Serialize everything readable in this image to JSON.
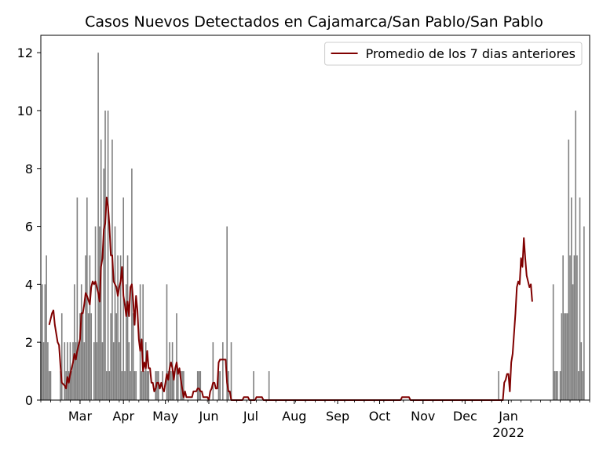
{
  "chart_data": {
    "type": "bar",
    "title": "Casos Nuevos Detectados en Cajamarca/San Pablo/San Pablo",
    "xlabel": "",
    "ylabel": "",
    "ylim": [
      0,
      12.6
    ],
    "xlim": [
      "2021-02-01",
      "2022-02-28"
    ],
    "y_ticks": [
      0,
      2,
      4,
      6,
      8,
      10,
      12
    ],
    "x_ticks": [
      {
        "date": "2021-03-01",
        "label": "Mar"
      },
      {
        "date": "2021-04-01",
        "label": "Apr"
      },
      {
        "date": "2021-05-01",
        "label": "May"
      },
      {
        "date": "2021-06-01",
        "label": "Jun"
      },
      {
        "date": "2021-07-01",
        "label": "Jul"
      },
      {
        "date": "2021-08-01",
        "label": "Aug"
      },
      {
        "date": "2021-09-01",
        "label": "Sep"
      },
      {
        "date": "2021-10-01",
        "label": "Oct"
      },
      {
        "date": "2021-11-01",
        "label": "Nov"
      },
      {
        "date": "2021-12-01",
        "label": "Dec"
      },
      {
        "date": "2022-01-01",
        "label": "Jan",
        "sublabel": "2022"
      }
    ],
    "legend": {
      "position": "top-right",
      "label": "Promedio de los 7 dias anteriores"
    },
    "colors": {
      "bars": "#808080",
      "line": "#800000",
      "frame": "#000000"
    },
    "series": [
      {
        "kind": "bar",
        "start_date": "2021-02-01",
        "values": [
          2,
          4,
          2,
          4,
          5,
          2,
          1,
          1,
          0,
          0,
          0,
          0,
          0,
          0,
          1,
          3,
          0,
          2,
          1,
          2,
          1,
          2,
          1,
          2,
          4,
          2,
          7,
          2,
          3,
          4,
          3,
          2,
          5,
          7,
          3,
          5,
          3,
          0,
          2,
          6,
          2,
          12,
          6,
          9,
          2,
          8,
          10,
          1,
          10,
          1,
          3,
          9,
          2,
          6,
          3,
          5,
          2,
          5,
          1,
          7,
          1,
          4,
          5,
          2,
          1,
          8,
          3,
          1,
          1,
          0,
          0,
          4,
          1,
          4,
          1,
          2,
          1,
          1,
          0,
          0,
          0,
          0,
          1,
          1,
          1,
          0,
          0,
          1,
          0,
          0,
          4,
          1,
          2,
          1,
          2,
          1,
          0,
          3,
          1,
          0,
          1,
          1,
          1,
          0,
          0,
          0,
          0,
          0,
          0,
          0,
          0,
          0,
          1,
          1,
          1,
          0,
          0,
          0,
          0,
          0,
          0,
          0,
          0,
          2,
          0,
          0,
          0,
          1,
          1,
          0,
          2,
          0,
          0,
          6,
          1,
          0,
          2,
          0,
          0,
          0,
          0,
          0,
          0,
          0,
          0,
          0,
          0,
          0,
          0,
          0,
          0,
          0,
          1,
          0,
          0,
          0,
          0,
          0,
          0,
          0,
          0,
          0,
          0,
          1,
          0,
          0,
          0,
          0,
          0,
          0,
          0,
          0,
          0,
          0,
          0,
          0,
          0,
          0,
          0,
          0,
          0,
          0,
          0,
          0,
          0,
          0,
          0,
          0,
          0,
          0,
          0,
          0,
          0,
          0,
          0,
          0,
          0,
          0,
          0,
          0,
          0,
          0,
          0,
          0,
          0,
          0,
          0,
          0,
          0,
          0,
          0,
          0,
          0,
          0,
          0,
          0,
          0,
          0,
          0,
          0,
          0,
          0,
          0,
          0,
          0,
          0,
          0,
          0,
          0,
          0,
          0,
          0,
          0,
          0,
          0,
          0,
          0,
          0,
          0,
          0,
          0,
          0,
          0,
          0,
          0,
          0,
          0,
          0,
          0,
          0,
          0,
          0,
          0,
          0,
          0,
          0,
          0,
          0,
          0,
          0,
          0,
          0,
          0,
          0,
          0,
          0,
          0,
          0,
          0,
          0,
          0,
          0,
          0,
          0,
          0,
          0,
          0,
          0,
          0,
          0,
          0,
          0,
          0,
          0,
          0,
          0,
          0,
          0,
          0,
          0,
          0,
          0,
          0,
          0,
          0,
          0,
          0,
          0,
          0,
          0,
          0,
          0,
          0,
          0,
          0,
          0,
          0,
          0,
          0,
          0,
          0,
          0,
          0,
          0,
          0,
          0,
          0,
          0,
          0,
          0,
          0,
          0,
          0,
          0,
          0,
          0,
          0,
          1,
          0,
          0,
          0,
          0,
          0,
          0,
          0,
          0,
          0,
          0,
          0,
          0,
          0,
          0,
          0,
          0,
          0,
          0,
          0,
          0,
          0,
          0,
          0,
          0,
          0,
          0,
          0,
          0,
          0,
          0,
          0,
          0,
          0,
          0,
          0,
          0,
          0,
          0,
          4,
          1,
          1,
          1,
          0,
          1,
          3,
          5,
          3,
          3,
          3,
          9,
          5,
          7,
          4,
          5,
          10,
          5,
          1,
          7,
          2,
          1,
          6
        ]
      },
      {
        "kind": "line",
        "name": "Promedio de los 7 dias anteriores",
        "points": [
          [
            "2021-02-07",
            2.6
          ],
          [
            "2021-02-09",
            3.0
          ],
          [
            "2021-02-10",
            3.1
          ],
          [
            "2021-02-11",
            2.6
          ],
          [
            "2021-02-13",
            2.0
          ],
          [
            "2021-02-14",
            1.9
          ],
          [
            "2021-02-15",
            1.2
          ],
          [
            "2021-02-16",
            0.6
          ],
          [
            "2021-02-18",
            0.5
          ],
          [
            "2021-02-19",
            0.4
          ],
          [
            "2021-02-20",
            0.8
          ],
          [
            "2021-02-21",
            0.6
          ],
          [
            "2021-02-22",
            0.9
          ],
          [
            "2021-02-24",
            1.3
          ],
          [
            "2021-02-25",
            1.6
          ],
          [
            "2021-02-26",
            1.4
          ],
          [
            "2021-02-27",
            1.7
          ],
          [
            "2021-03-01",
            2.1
          ],
          [
            "2021-03-02",
            3.0
          ],
          [
            "2021-03-03",
            3.0
          ],
          [
            "2021-03-04",
            3.3
          ],
          [
            "2021-03-05",
            3.7
          ],
          [
            "2021-03-06",
            3.6
          ],
          [
            "2021-03-08",
            3.3
          ],
          [
            "2021-03-09",
            3.9
          ],
          [
            "2021-03-10",
            4.1
          ],
          [
            "2021-03-11",
            4.0
          ],
          [
            "2021-03-12",
            4.1
          ],
          [
            "2021-03-13",
            3.9
          ],
          [
            "2021-03-14",
            3.7
          ],
          [
            "2021-03-15",
            3.4
          ],
          [
            "2021-03-16",
            4.6
          ],
          [
            "2021-03-17",
            4.9
          ],
          [
            "2021-03-18",
            5.9
          ],
          [
            "2021-03-19",
            6.1
          ],
          [
            "2021-03-20",
            7.0
          ],
          [
            "2021-03-21",
            6.7
          ],
          [
            "2021-03-22",
            6.0
          ],
          [
            "2021-03-23",
            5.0
          ],
          [
            "2021-03-24",
            5.0
          ],
          [
            "2021-03-25",
            4.1
          ],
          [
            "2021-03-26",
            4.0
          ],
          [
            "2021-03-27",
            3.9
          ],
          [
            "2021-03-28",
            3.6
          ],
          [
            "2021-03-29",
            3.9
          ],
          [
            "2021-03-30",
            4.1
          ],
          [
            "2021-03-31",
            4.6
          ],
          [
            "2021-04-01",
            3.6
          ],
          [
            "2021-04-02",
            3.3
          ],
          [
            "2021-04-03",
            2.9
          ],
          [
            "2021-04-04",
            3.4
          ],
          [
            "2021-04-05",
            2.9
          ],
          [
            "2021-04-06",
            3.9
          ],
          [
            "2021-04-07",
            4.0
          ],
          [
            "2021-04-08",
            3.4
          ],
          [
            "2021-04-09",
            2.6
          ],
          [
            "2021-04-10",
            3.6
          ],
          [
            "2021-04-11",
            3.1
          ],
          [
            "2021-04-12",
            2.1
          ],
          [
            "2021-04-13",
            1.7
          ],
          [
            "2021-04-14",
            2.1
          ],
          [
            "2021-04-15",
            1.0
          ],
          [
            "2021-04-16",
            1.3
          ],
          [
            "2021-04-17",
            1.1
          ],
          [
            "2021-04-18",
            1.7
          ],
          [
            "2021-04-19",
            1.1
          ],
          [
            "2021-04-20",
            1.1
          ],
          [
            "2021-04-21",
            0.6
          ],
          [
            "2021-04-22",
            0.6
          ],
          [
            "2021-04-23",
            0.3
          ],
          [
            "2021-04-24",
            0.4
          ],
          [
            "2021-04-25",
            0.6
          ],
          [
            "2021-04-26",
            0.6
          ],
          [
            "2021-04-27",
            0.4
          ],
          [
            "2021-04-28",
            0.6
          ],
          [
            "2021-04-29",
            0.4
          ],
          [
            "2021-04-30",
            0.3
          ],
          [
            "2021-05-01",
            0.6
          ],
          [
            "2021-05-02",
            0.9
          ],
          [
            "2021-05-03",
            0.7
          ],
          [
            "2021-05-04",
            1.1
          ],
          [
            "2021-05-05",
            1.3
          ],
          [
            "2021-05-06",
            1.1
          ],
          [
            "2021-05-07",
            0.7
          ],
          [
            "2021-05-08",
            1.1
          ],
          [
            "2021-05-09",
            1.3
          ],
          [
            "2021-05-10",
            0.9
          ],
          [
            "2021-05-11",
            1.1
          ],
          [
            "2021-05-12",
            0.7
          ],
          [
            "2021-05-13",
            0.4
          ],
          [
            "2021-05-14",
            0.1
          ],
          [
            "2021-05-15",
            0.3
          ],
          [
            "2021-05-16",
            0.1
          ],
          [
            "2021-05-20",
            0.1
          ],
          [
            "2021-05-21",
            0.3
          ],
          [
            "2021-05-23",
            0.3
          ],
          [
            "2021-05-24",
            0.4
          ],
          [
            "2021-05-25",
            0.4
          ],
          [
            "2021-05-26",
            0.3
          ],
          [
            "2021-05-27",
            0.3
          ],
          [
            "2021-05-28",
            0.1
          ],
          [
            "2021-05-31",
            0.1
          ],
          [
            "2021-06-01",
            0.0
          ],
          [
            "2021-06-02",
            0.3
          ],
          [
            "2021-06-03",
            0.4
          ],
          [
            "2021-06-04",
            0.6
          ],
          [
            "2021-06-05",
            0.6
          ],
          [
            "2021-06-06",
            0.4
          ],
          [
            "2021-06-07",
            0.4
          ],
          [
            "2021-06-08",
            1.3
          ],
          [
            "2021-06-09",
            1.4
          ],
          [
            "2021-06-12",
            1.4
          ],
          [
            "2021-06-13",
            1.4
          ],
          [
            "2021-06-14",
            0.6
          ],
          [
            "2021-06-15",
            0.3
          ],
          [
            "2021-06-16",
            0.3
          ],
          [
            "2021-06-17",
            0.0
          ],
          [
            "2021-06-25",
            0.0
          ],
          [
            "2021-06-26",
            0.1
          ],
          [
            "2021-06-29",
            0.1
          ],
          [
            "2021-06-30",
            0.0
          ],
          [
            "2021-07-04",
            0.0
          ],
          [
            "2021-07-05",
            0.1
          ],
          [
            "2021-07-09",
            0.1
          ],
          [
            "2021-07-10",
            0.0
          ],
          [
            "2021-10-16",
            0.0
          ],
          [
            "2021-10-17",
            0.1
          ],
          [
            "2021-10-22",
            0.1
          ],
          [
            "2021-10-23",
            0.0
          ],
          [
            "2021-12-28",
            0.0
          ],
          [
            "2021-12-29",
            0.6
          ],
          [
            "2021-12-30",
            0.7
          ],
          [
            "2021-12-31",
            0.9
          ],
          [
            "2022-01-01",
            0.9
          ],
          [
            "2022-01-02",
            0.3
          ],
          [
            "2022-01-03",
            1.3
          ],
          [
            "2022-01-04",
            1.6
          ],
          [
            "2022-01-05",
            2.3
          ],
          [
            "2022-01-06",
            3.0
          ],
          [
            "2022-01-07",
            3.9
          ],
          [
            "2022-01-08",
            4.1
          ],
          [
            "2022-01-09",
            4.0
          ],
          [
            "2022-01-10",
            4.9
          ],
          [
            "2022-01-11",
            4.6
          ],
          [
            "2022-01-12",
            5.6
          ],
          [
            "2022-01-13",
            4.9
          ],
          [
            "2022-01-14",
            4.3
          ],
          [
            "2022-01-15",
            4.1
          ],
          [
            "2022-01-16",
            3.9
          ],
          [
            "2022-01-17",
            4.0
          ],
          [
            "2022-01-18",
            3.4
          ]
        ]
      }
    ]
  }
}
